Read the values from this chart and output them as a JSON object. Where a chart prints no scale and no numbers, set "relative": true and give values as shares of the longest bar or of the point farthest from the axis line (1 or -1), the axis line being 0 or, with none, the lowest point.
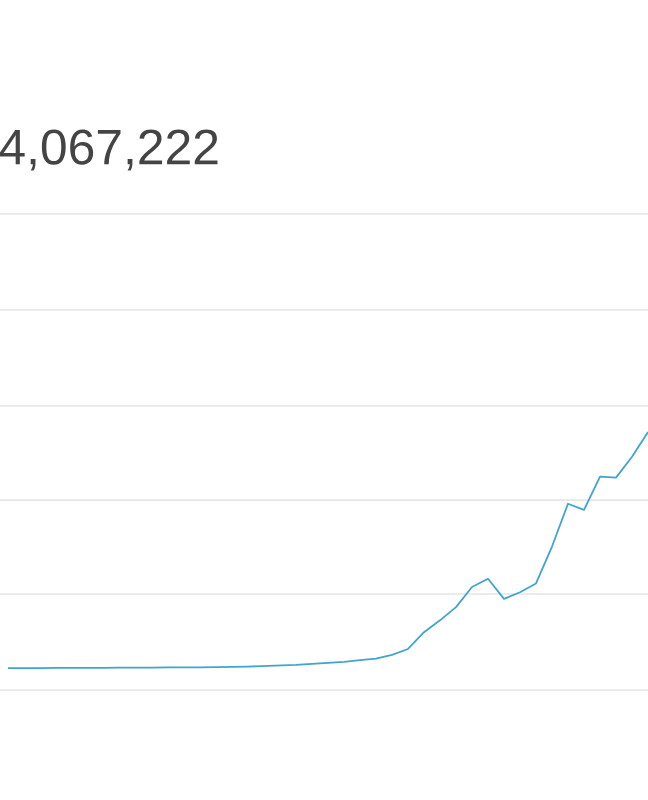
{
  "chart_data": {
    "type": "line",
    "title": "4,067,222",
    "relative": true,
    "color": "#3fa4d2",
    "ref_lines": [
      {
        "axis": "y",
        "value": 0.372,
        "color": "#e6e6e6"
      },
      {
        "axis": "y",
        "value": 0.736,
        "color": "#e6e6e6"
      },
      {
        "axis": "y",
        "value": 1.101,
        "color": "#e6e6e6"
      },
      {
        "axis": "y",
        "value": 1.473,
        "color": "#e6e6e6"
      },
      {
        "axis": "y",
        "value": 1.845,
        "color": "#e6e6e6"
      }
    ],
    "categories": [
      null,
      null,
      null,
      null,
      null,
      null,
      null,
      null,
      null,
      null,
      null,
      null,
      null,
      null,
      null,
      null,
      null,
      null,
      null,
      null,
      null,
      null,
      null,
      null,
      null,
      null,
      null,
      null,
      null,
      null,
      null,
      null,
      null,
      null,
      null,
      null,
      null,
      null,
      null,
      null,
      null
    ],
    "values": [
      0.085,
      0.085,
      0.085,
      0.086,
      0.086,
      0.086,
      0.086,
      0.087,
      0.087,
      0.087,
      0.088,
      0.088,
      0.088,
      0.089,
      0.09,
      0.091,
      0.093,
      0.095,
      0.097,
      0.101,
      0.105,
      0.109,
      0.116,
      0.122,
      0.136,
      0.159,
      0.224,
      0.27,
      0.321,
      0.399,
      0.431,
      0.353,
      0.379,
      0.413,
      0.556,
      0.722,
      0.698,
      0.827,
      0.823,
      0.904,
      1
    ]
  }
}
